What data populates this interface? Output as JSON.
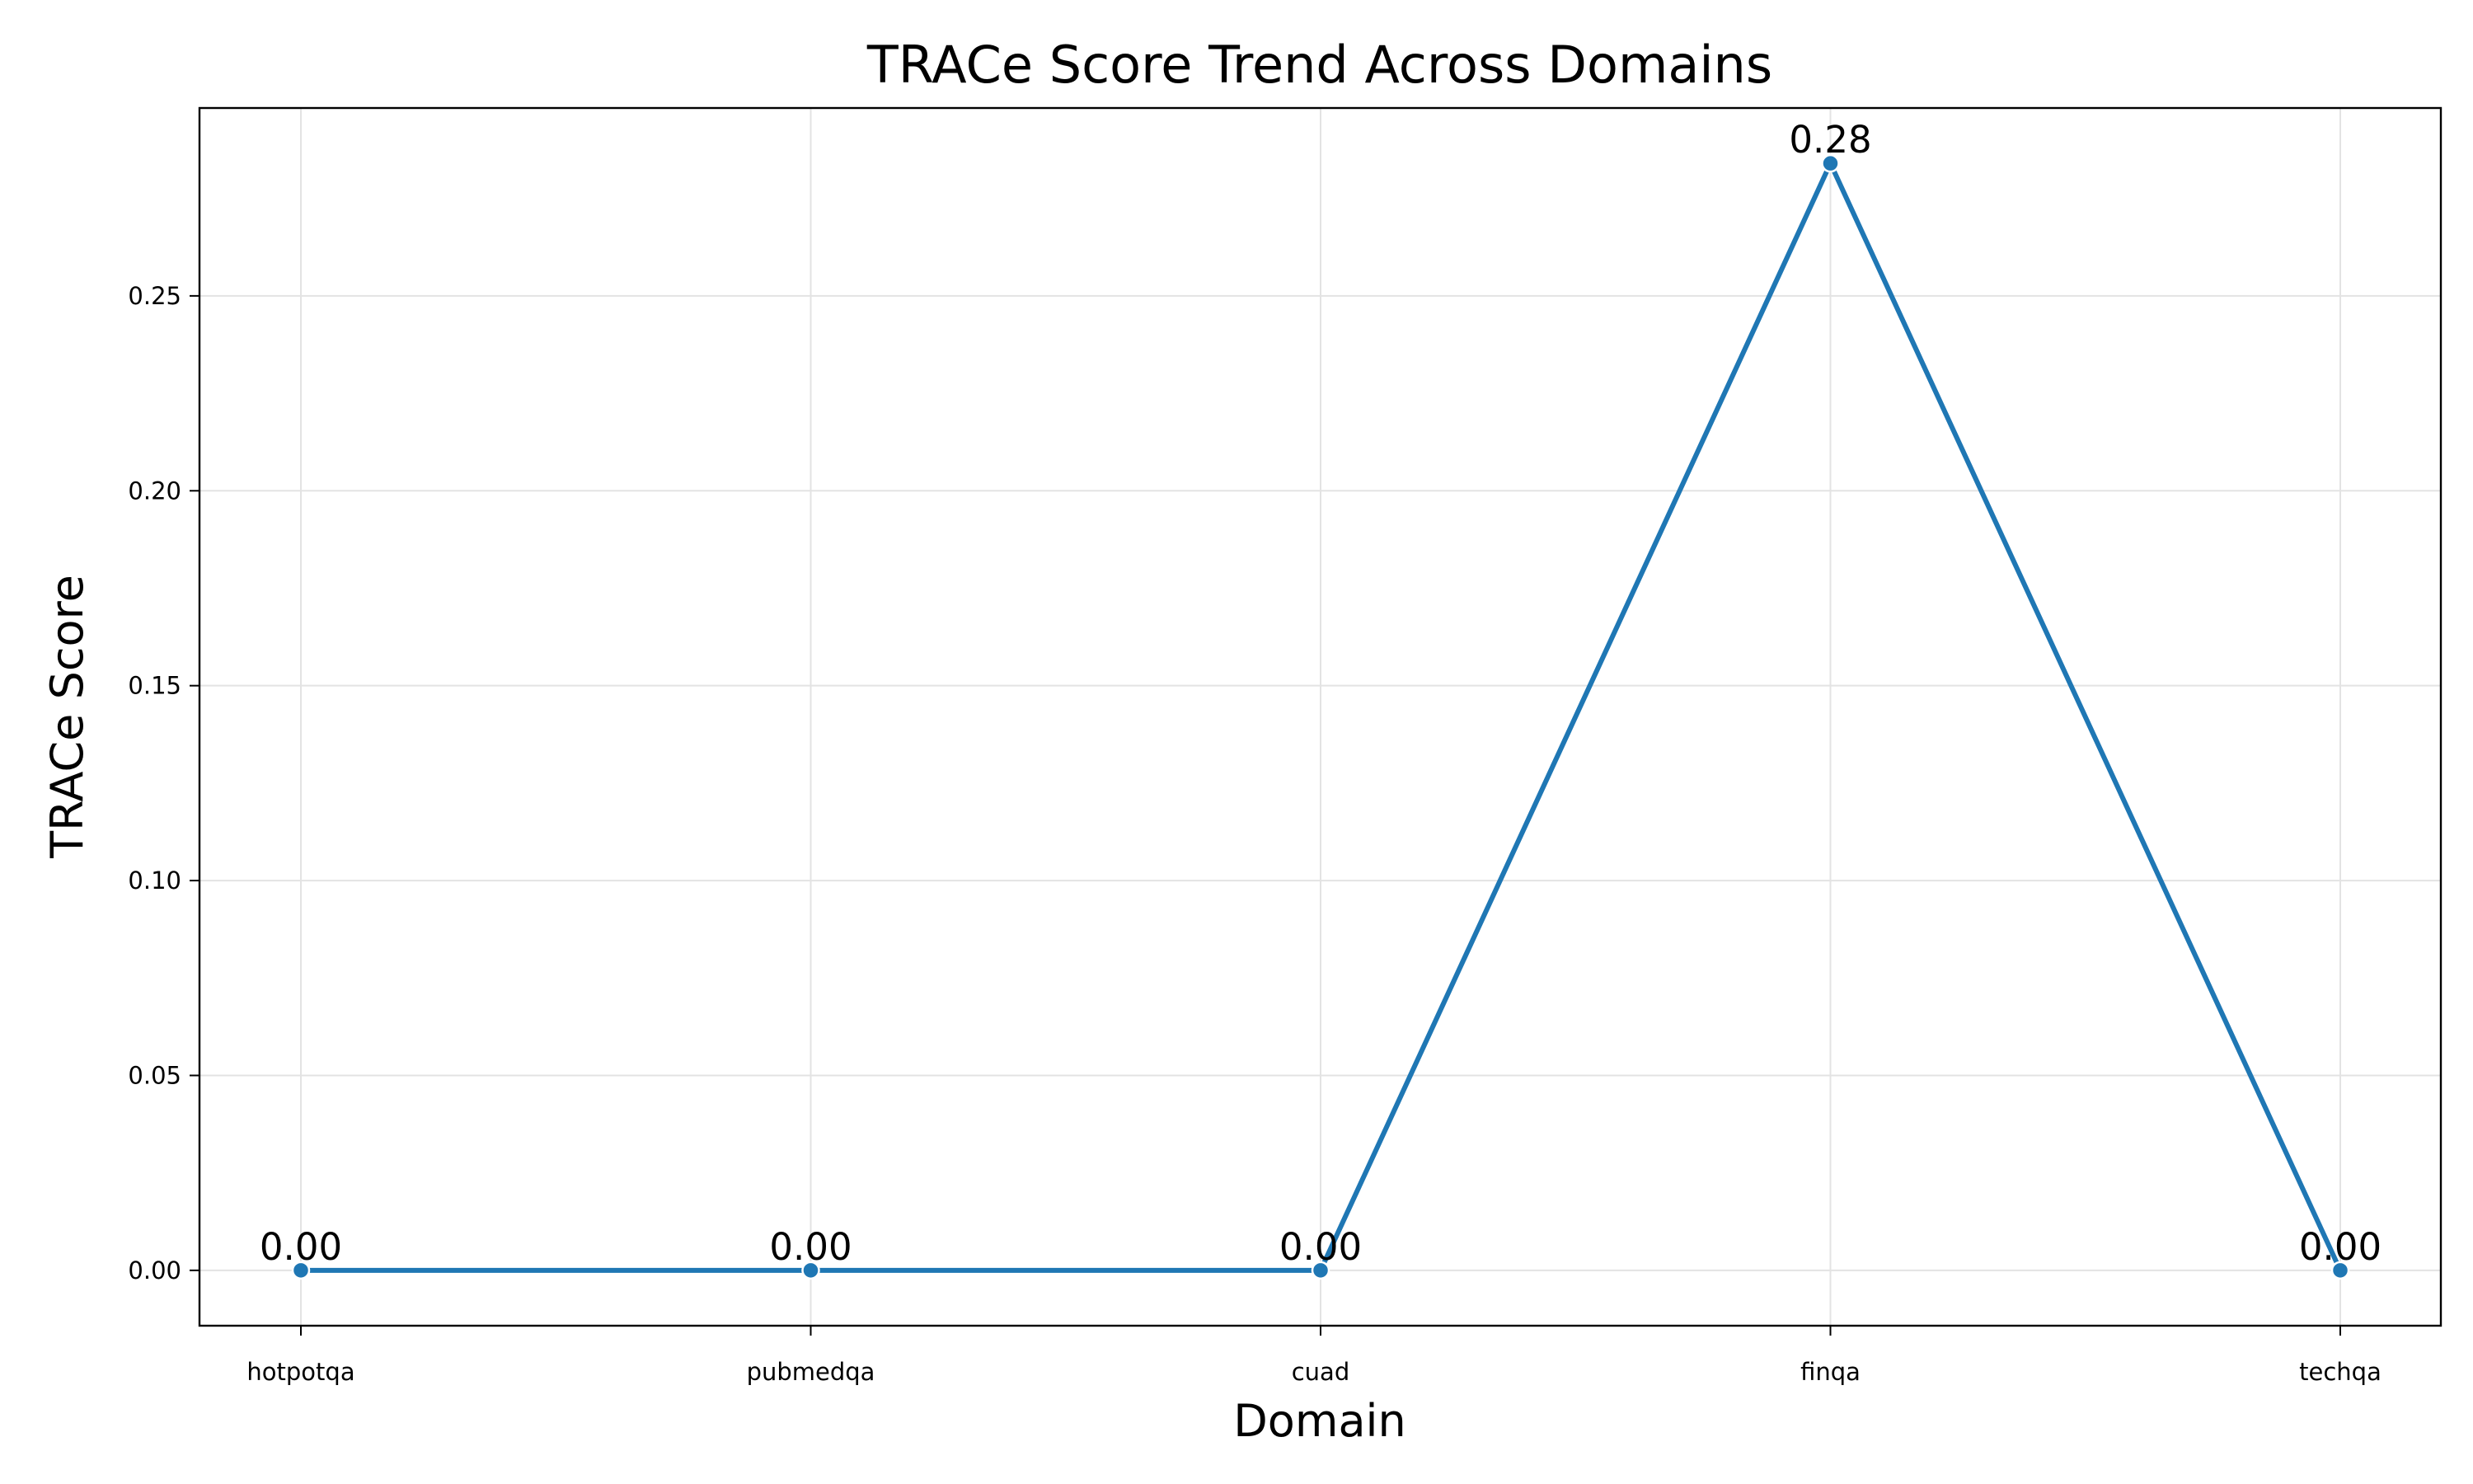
{
  "chart_data": {
    "type": "line",
    "title": "TRACe Score Trend Across Domains",
    "xlabel": "Domain",
    "ylabel": "TRACe Score",
    "categories": [
      "hotpotqa",
      "pubmedqa",
      "cuad",
      "finqa",
      "techqa"
    ],
    "series": [
      {
        "values": [
          0.0,
          0.0,
          0.0,
          0.284,
          0.0
        ],
        "color": "#1f77b4"
      }
    ],
    "data_labels": [
      "0.00",
      "0.00",
      "0.00",
      "0.28",
      "0.00"
    ],
    "ylim": [
      -0.0142,
      0.2982
    ],
    "yticks": [
      0.0,
      0.05,
      0.1,
      0.15,
      0.2,
      0.25
    ],
    "ytick_labels": [
      "0.00",
      "0.05",
      "0.10",
      "0.15",
      "0.20",
      "0.25"
    ],
    "grid": true,
    "legend": "none"
  }
}
